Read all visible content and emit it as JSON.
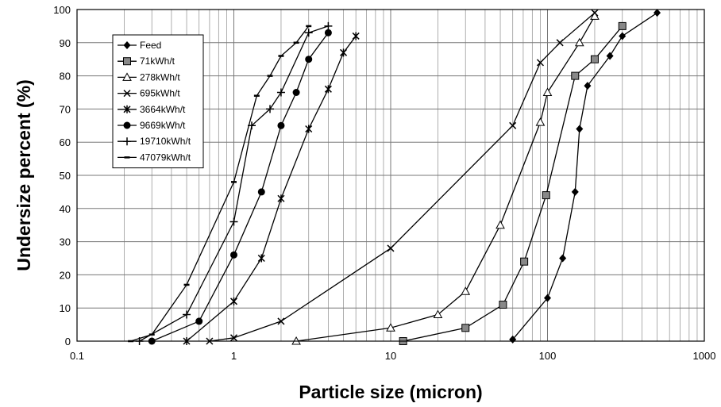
{
  "chart_data": {
    "type": "line",
    "title": "",
    "xlabel": "Particle size (micron)",
    "ylabel": "Undersize percent (%)",
    "x_scale": "log",
    "xlim": [
      0.1,
      1000
    ],
    "ylim": [
      0,
      100
    ],
    "x_ticks": [
      "0.1",
      "1",
      "10",
      "100",
      "1000"
    ],
    "y_ticks": [
      "0",
      "10",
      "20",
      "30",
      "40",
      "50",
      "60",
      "70",
      "80",
      "90",
      "100"
    ],
    "grid": true,
    "legend_position": "top-left",
    "series": [
      {
        "name": "Feed",
        "marker": "diamond",
        "x": [
          60,
          100,
          125,
          150,
          160,
          180,
          250,
          300,
          500
        ],
        "y": [
          0.5,
          13,
          25,
          45,
          64,
          77,
          86,
          92,
          99
        ]
      },
      {
        "name": "71kWh/t",
        "marker": "square",
        "x": [
          12,
          30,
          52,
          71,
          98,
          150,
          200,
          300
        ],
        "y": [
          0,
          4,
          11,
          24,
          44,
          80,
          85,
          95
        ]
      },
      {
        "name": "278kWh/t",
        "marker": "triangle",
        "x": [
          2.5,
          10,
          20,
          30,
          50,
          90,
          100,
          160,
          200
        ],
        "y": [
          0,
          4,
          8,
          15,
          35,
          66,
          75,
          90,
          98
        ]
      },
      {
        "name": "695kWh/t",
        "marker": "x",
        "x": [
          0.7,
          1,
          2,
          10,
          60,
          90,
          120,
          200
        ],
        "y": [
          0,
          1,
          6,
          28,
          65,
          84,
          90,
          99
        ]
      },
      {
        "name": "3664kWh/t",
        "marker": "star",
        "x": [
          0.5,
          1,
          1.5,
          2,
          3,
          4,
          5,
          6
        ],
        "y": [
          0,
          12,
          25,
          43,
          64,
          76,
          87,
          92
        ]
      },
      {
        "name": "9669kWh/t",
        "marker": "circle",
        "x": [
          0.3,
          0.6,
          1,
          1.5,
          2,
          2.5,
          3,
          4
        ],
        "y": [
          0,
          6,
          26,
          45,
          65,
          75,
          85,
          93
        ]
      },
      {
        "name": "19710kWh/t",
        "marker": "plus",
        "x": [
          0.25,
          0.5,
          1,
          1.3,
          1.7,
          2,
          3,
          4
        ],
        "y": [
          0,
          8,
          36,
          65,
          70,
          75,
          93,
          95
        ]
      },
      {
        "name": "47079kWh/t",
        "marker": "dash",
        "x": [
          0.22,
          0.3,
          0.5,
          1,
          1.4,
          1.7,
          2,
          2.5,
          3
        ],
        "y": [
          0,
          2,
          17,
          48,
          74,
          80,
          86,
          90,
          95
        ]
      }
    ]
  }
}
